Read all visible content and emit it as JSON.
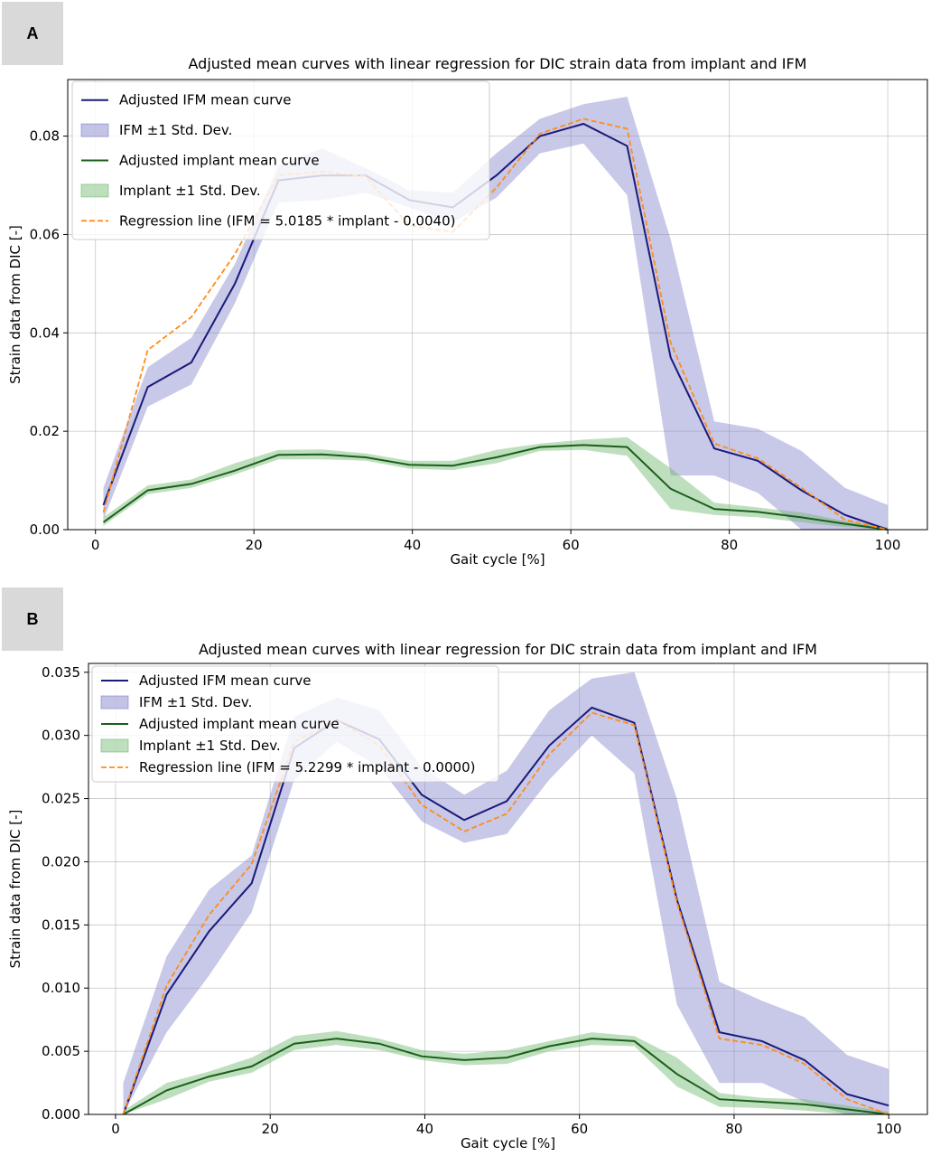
{
  "figure": {
    "panels": [
      {
        "label": "A"
      },
      {
        "label": "B"
      }
    ]
  },
  "colors": {
    "ifm_line": "#1a1a7a",
    "ifm_band": "#7b7bc8",
    "implant_line": "#1b5e1b",
    "implant_band": "#6fb86f",
    "regression": "#ff8c1a",
    "panel_label_bg": "#d9d9d9"
  },
  "chart_data": [
    {
      "type": "line",
      "panel": "A",
      "title": "Adjusted mean curves with linear regression for DIC strain data from implant and IFM",
      "xlabel": "Gait cycle [%]",
      "ylabel": "Strain data from DIC [-]",
      "xlim": [
        -3.5,
        105
      ],
      "ylim": [
        0,
        0.0915
      ],
      "xticks": [
        0,
        20,
        40,
        60,
        80,
        100
      ],
      "yticks": [
        0.0,
        0.02,
        0.04,
        0.06,
        0.08
      ],
      "ytick_labels": [
        "0.00",
        "0.02",
        "0.04",
        "0.06",
        "0.08"
      ],
      "grid": true,
      "legend_position": "top-left",
      "legend": [
        {
          "kind": "line",
          "series": "ifm_mean",
          "label": "Adjusted IFM mean curve"
        },
        {
          "kind": "band",
          "series": "ifm_band",
          "label": "IFM ±1 Std. Dev."
        },
        {
          "kind": "line",
          "series": "implant_mean",
          "label": "Adjusted implant mean curve"
        },
        {
          "kind": "band",
          "series": "implant_band",
          "label": "Implant ±1 Std. Dev."
        },
        {
          "kind": "dashed",
          "series": "regression",
          "label": "Regression line (IFM = 5.0185 * implant - 0.0040)"
        }
      ],
      "x": [
        1,
        6.6,
        12.1,
        17.6,
        23.1,
        28.6,
        34.1,
        39.6,
        45.1,
        50.6,
        56.1,
        61.6,
        67.1,
        72.6,
        78.1,
        83.6,
        89.1,
        94.6,
        100
      ],
      "series": [
        {
          "name": "ifm_mean",
          "values": [
            0.005,
            0.029,
            0.034,
            0.05,
            0.071,
            0.072,
            0.072,
            0.067,
            0.0655,
            0.072,
            0.08,
            0.0825,
            0.078,
            0.035,
            0.0165,
            0.014,
            0.008,
            0.003,
            0.0
          ]
        },
        {
          "name": "ifm_upper",
          "values": [
            0.0085,
            0.033,
            0.039,
            0.054,
            0.074,
            0.0775,
            0.0735,
            0.069,
            0.0685,
            0.0765,
            0.0835,
            0.0865,
            0.088,
            0.059,
            0.022,
            0.0205,
            0.016,
            0.0085,
            0.005
          ]
        },
        {
          "name": "ifm_lower",
          "values": [
            0.002,
            0.025,
            0.0295,
            0.046,
            0.0665,
            0.067,
            0.0685,
            0.0655,
            0.0625,
            0.0675,
            0.0765,
            0.0785,
            0.068,
            0.011,
            0.011,
            0.0075,
            0.0,
            0.0,
            0.0
          ]
        },
        {
          "name": "implant_mean",
          "values": [
            0.0015,
            0.008,
            0.0093,
            0.012,
            0.0152,
            0.0153,
            0.0147,
            0.0132,
            0.013,
            0.0147,
            0.0168,
            0.0172,
            0.0168,
            0.0083,
            0.0042,
            0.0036,
            0.0025,
            0.0012,
            0.0
          ]
        },
        {
          "name": "implant_upper",
          "values": [
            0.0025,
            0.009,
            0.0102,
            0.0135,
            0.0162,
            0.0163,
            0.0155,
            0.014,
            0.014,
            0.0162,
            0.0175,
            0.0183,
            0.0188,
            0.0125,
            0.0055,
            0.0045,
            0.0035,
            0.0018,
            0.0005
          ]
        },
        {
          "name": "implant_lower",
          "values": [
            0.0008,
            0.0072,
            0.0085,
            0.0112,
            0.0143,
            0.0143,
            0.014,
            0.0124,
            0.0121,
            0.0135,
            0.016,
            0.0162,
            0.015,
            0.0042,
            0.003,
            0.0025,
            0.0015,
            0.0005,
            0.0
          ]
        },
        {
          "name": "regression",
          "values": [
            0.0035,
            0.0365,
            0.0432,
            0.056,
            0.072,
            0.0728,
            0.0718,
            0.0618,
            0.0605,
            0.0695,
            0.0805,
            0.0835,
            0.0815,
            0.038,
            0.0175,
            0.0145,
            0.0085,
            0.002,
            0.0
          ]
        }
      ]
    },
    {
      "type": "line",
      "panel": "B",
      "title": "Adjusted mean curves with linear regression for DIC strain data from implant and IFM",
      "xlabel": "Gait cycle [%]",
      "ylabel": "Strain data from DIC [-]",
      "xlim": [
        -3.5,
        105
      ],
      "ylim": [
        0,
        0.0357
      ],
      "xticks": [
        0,
        20,
        40,
        60,
        80,
        100
      ],
      "yticks": [
        0.0,
        0.005,
        0.01,
        0.015,
        0.02,
        0.025,
        0.03,
        0.035
      ],
      "ytick_labels": [
        "0.000",
        "0.005",
        "0.010",
        "0.015",
        "0.020",
        "0.025",
        "0.030",
        "0.035"
      ],
      "grid": true,
      "legend_position": "top-left",
      "legend": [
        {
          "kind": "line",
          "series": "ifm_mean",
          "label": "Adjusted IFM mean curve"
        },
        {
          "kind": "band",
          "series": "ifm_band",
          "label": "IFM ±1 Std. Dev."
        },
        {
          "kind": "line",
          "series": "implant_mean",
          "label": "Adjusted implant mean curve"
        },
        {
          "kind": "band",
          "series": "implant_band",
          "label": "Implant ±1 Std. Dev."
        },
        {
          "kind": "dashed",
          "series": "regression",
          "label": "Regression line (IFM = 5.2299 * implant - 0.0000)"
        }
      ],
      "x": [
        1,
        6.6,
        12.1,
        17.6,
        23.1,
        28.6,
        34.1,
        39.6,
        45.1,
        50.6,
        56.1,
        61.6,
        67.1,
        72.6,
        78.1,
        83.6,
        89.1,
        94.6,
        100
      ],
      "series": [
        {
          "name": "ifm_mean",
          "values": [
            0.0,
            0.0095,
            0.0145,
            0.0183,
            0.029,
            0.0312,
            0.0297,
            0.0253,
            0.0233,
            0.0248,
            0.0292,
            0.0322,
            0.031,
            0.017,
            0.0065,
            0.0058,
            0.0043,
            0.0016,
            0.0007
          ]
        },
        {
          "name": "ifm_upper",
          "values": [
            0.0025,
            0.0125,
            0.0178,
            0.0205,
            0.0315,
            0.033,
            0.032,
            0.0275,
            0.0253,
            0.0272,
            0.032,
            0.0345,
            0.035,
            0.025,
            0.0105,
            0.009,
            0.0077,
            0.0047,
            0.0036
          ]
        },
        {
          "name": "ifm_lower",
          "values": [
            0.0,
            0.0065,
            0.011,
            0.016,
            0.0265,
            0.0295,
            0.0275,
            0.0232,
            0.0215,
            0.0222,
            0.0265,
            0.03,
            0.027,
            0.0087,
            0.0025,
            0.0025,
            0.001,
            0.0,
            0.0
          ]
        },
        {
          "name": "implant_mean",
          "values": [
            0.0,
            0.0019,
            0.003,
            0.0038,
            0.0056,
            0.006,
            0.0056,
            0.0046,
            0.0043,
            0.0045,
            0.0054,
            0.006,
            0.0058,
            0.0032,
            0.0012,
            0.001,
            0.0008,
            0.0004,
            0.0
          ]
        },
        {
          "name": "implant_upper",
          "values": [
            0.0003,
            0.0025,
            0.0034,
            0.0045,
            0.0062,
            0.0066,
            0.006,
            0.0051,
            0.0048,
            0.0051,
            0.0058,
            0.0065,
            0.0062,
            0.0045,
            0.0017,
            0.0013,
            0.0012,
            0.0007,
            0.0002
          ]
        },
        {
          "name": "implant_lower",
          "values": [
            0.0,
            0.0012,
            0.0026,
            0.0033,
            0.0051,
            0.0055,
            0.0051,
            0.0043,
            0.0039,
            0.004,
            0.005,
            0.0055,
            0.0054,
            0.0022,
            0.0006,
            0.0005,
            0.0003,
            0.0,
            0.0
          ]
        },
        {
          "name": "regression",
          "values": [
            0.0,
            0.0102,
            0.0158,
            0.0198,
            0.0295,
            0.0312,
            0.0292,
            0.0245,
            0.0224,
            0.0238,
            0.0285,
            0.0318,
            0.0308,
            0.0168,
            0.006,
            0.0055,
            0.004,
            0.0012,
            0.0
          ]
        }
      ]
    }
  ]
}
